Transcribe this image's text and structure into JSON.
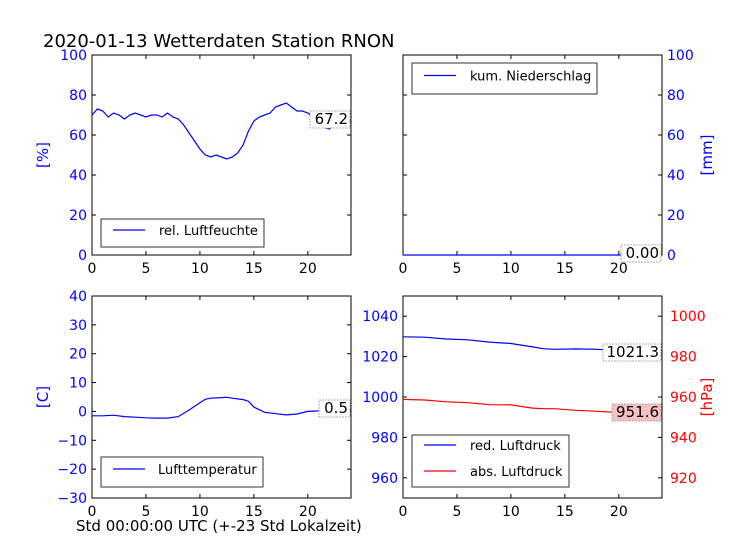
{
  "title": "2020-01-13 Wetterdaten Station RNON",
  "footer_xlabel": "Std 00:00:00 UTC (+-23 Std Lokalzeit)",
  "colors": {
    "axis_blue": "#0000ff",
    "axis_red": "#ff0000",
    "line_blue": "#0000ff",
    "line_red": "#ff0000",
    "badge_red_bg": "#f4c2c2"
  },
  "chart_data": [
    {
      "id": "humidity",
      "type": "line",
      "ylabel": "[%]",
      "ylabel_side": "left",
      "ylim": [
        0,
        100
      ],
      "yticks": [
        0,
        20,
        40,
        60,
        80,
        100
      ],
      "xlim": [
        0,
        24
      ],
      "xticks": [
        0,
        5,
        10,
        15,
        20
      ],
      "legend_position": "bottom-left",
      "series": [
        {
          "name": "rel. Luftfeuchte",
          "color": "#0000ff",
          "x": [
            0,
            0.5,
            1,
            1.5,
            2,
            2.5,
            3,
            3.5,
            4,
            4.5,
            5,
            5.5,
            6,
            6.5,
            7,
            7.5,
            8,
            8.5,
            9,
            9.5,
            10,
            10.5,
            11,
            11.5,
            12,
            12.5,
            13,
            13.5,
            14,
            14.5,
            15,
            15.5,
            16,
            16.5,
            17,
            17.5,
            18,
            18.5,
            19,
            19.5,
            20,
            20.5,
            21,
            21.5,
            22,
            22.5,
            23,
            23.5,
            24
          ],
          "values": [
            70,
            73,
            72,
            69,
            71,
            70,
            68,
            70,
            71,
            70,
            69,
            70,
            70,
            69,
            71,
            69,
            68,
            65,
            61,
            57,
            53,
            50,
            49,
            50,
            49,
            48,
            49,
            51,
            55,
            62,
            67,
            69,
            70,
            71,
            74,
            75,
            76,
            74,
            72,
            72,
            71,
            69,
            70,
            64,
            63,
            66,
            67,
            66,
            67
          ]
        }
      ],
      "end_label": "67.2"
    },
    {
      "id": "precipitation",
      "type": "line",
      "ylabel": "[mm]",
      "ylabel_side": "right",
      "ylim": [
        0,
        100
      ],
      "yticks": [
        0,
        20,
        40,
        60,
        80,
        100
      ],
      "xlim": [
        0,
        24
      ],
      "xticks": [
        0,
        5,
        10,
        15,
        20
      ],
      "legend_position": "top-left",
      "series": [
        {
          "name": "kum. Niederschlag",
          "color": "#0000ff",
          "x": [
            0,
            24
          ],
          "values": [
            0,
            0
          ]
        }
      ],
      "end_label": "0.00"
    },
    {
      "id": "temperature",
      "type": "line",
      "ylabel": "[C]",
      "ylabel_side": "left",
      "ylim": [
        -30,
        40
      ],
      "yticks": [
        -30,
        -20,
        -10,
        0,
        10,
        20,
        30,
        40
      ],
      "xlim": [
        0,
        24
      ],
      "xticks": [
        0,
        5,
        10,
        15,
        20
      ],
      "legend_position": "bottom-left",
      "series": [
        {
          "name": "Lufttemperatur",
          "color": "#0000ff",
          "x": [
            0,
            1,
            2,
            3,
            4,
            5,
            6,
            7,
            8,
            9,
            10,
            10.5,
            11,
            12,
            12.5,
            13,
            14,
            14.5,
            15,
            16,
            17,
            18,
            19,
            20,
            21,
            22,
            23,
            24
          ],
          "values": [
            -1.5,
            -1.5,
            -1.3,
            -1.8,
            -2.0,
            -2.2,
            -2.3,
            -2.3,
            -1.8,
            0.5,
            3.0,
            4.2,
            4.6,
            4.8,
            4.9,
            4.6,
            4.1,
            3.5,
            1.5,
            -0.3,
            -0.8,
            -1.2,
            -0.9,
            0.0,
            0.2,
            0.6,
            0.5,
            0.5
          ]
        }
      ],
      "end_label": "0.5"
    },
    {
      "id": "pressure",
      "type": "line",
      "ylabel": "[hPa]",
      "ylabel_side": "right",
      "ylim": [
        950,
        1050
      ],
      "yticks": [
        960,
        980,
        1000,
        1020,
        1040
      ],
      "ylim_right": [
        910,
        1010
      ],
      "yticks_right": [
        920,
        940,
        960,
        980,
        1000
      ],
      "xlim": [
        0,
        24
      ],
      "xticks": [
        0,
        5,
        10,
        15,
        20
      ],
      "legend_position": "bottom-left",
      "series": [
        {
          "name": "red. Luftdruck",
          "color": "#0000ff",
          "axis": "left",
          "x": [
            0,
            2,
            4,
            6,
            8,
            10,
            12,
            13,
            14,
            16,
            18,
            20,
            22,
            24
          ],
          "values": [
            1029.8,
            1029.6,
            1028.7,
            1028.3,
            1027.2,
            1026.5,
            1024.8,
            1023.9,
            1023.6,
            1023.8,
            1023.6,
            1022.9,
            1021.8,
            1021.3
          ]
        },
        {
          "name": "abs. Luftdruck",
          "color": "#ff0000",
          "axis": "right",
          "x": [
            0,
            2,
            4,
            6,
            8,
            10,
            12,
            13,
            14,
            16,
            18,
            20,
            22,
            24
          ],
          "values": [
            958.8,
            958.5,
            957.6,
            957.2,
            956.2,
            956.1,
            954.5,
            954.2,
            954.2,
            953.4,
            952.9,
            952.3,
            951.8,
            951.6
          ]
        }
      ],
      "end_labels": [
        "1021.3",
        "951.6"
      ]
    }
  ]
}
